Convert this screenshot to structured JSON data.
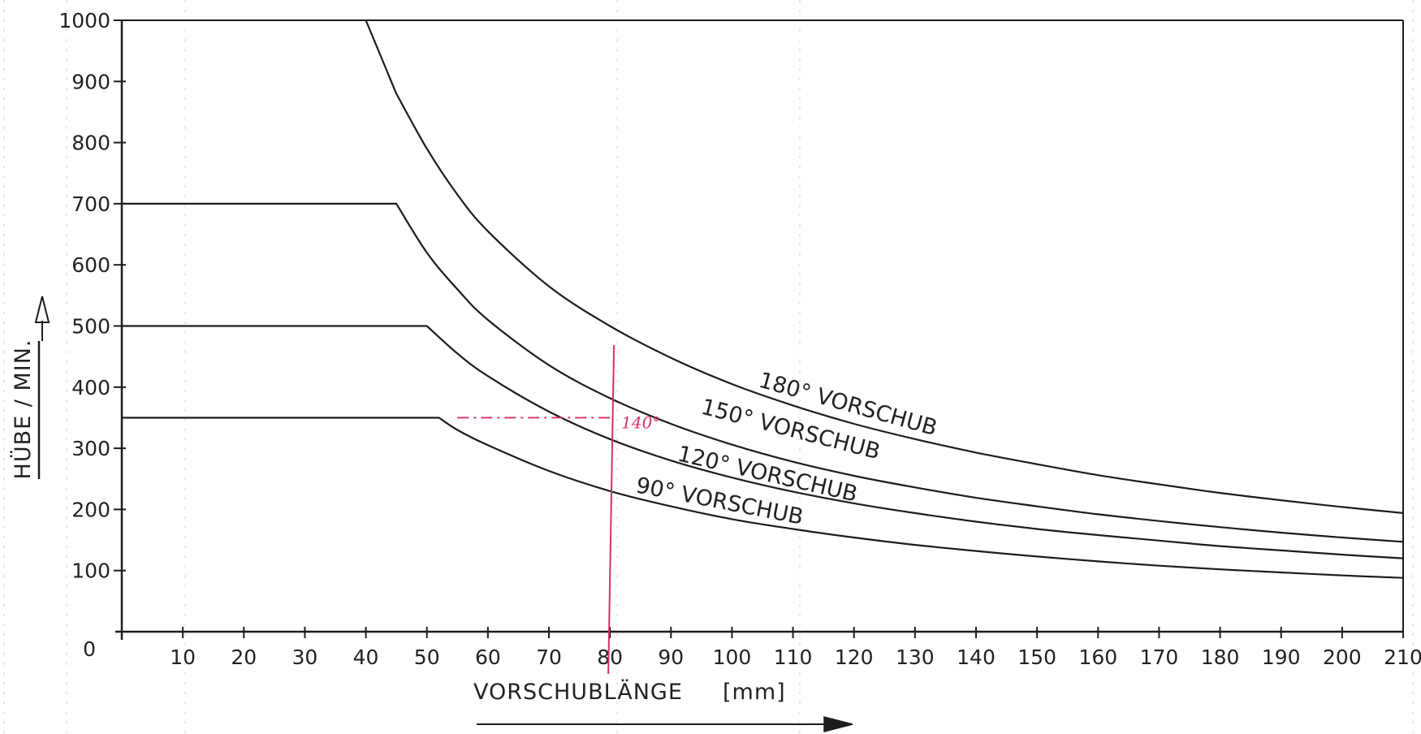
{
  "chart_data": {
    "type": "line",
    "title": "",
    "xlabel": "VORSCHUBLÄNGE",
    "xunit": "[mm]",
    "ylabel": "HÜBE / MIN.",
    "xlim": [
      0,
      210
    ],
    "ylim": [
      0,
      1000
    ],
    "x_ticks": [
      10,
      20,
      30,
      40,
      50,
      60,
      70,
      80,
      90,
      100,
      110,
      120,
      130,
      140,
      150,
      160,
      170,
      180,
      190,
      200,
      210
    ],
    "y_ticks": [
      0,
      100,
      200,
      300,
      400,
      500,
      600,
      700,
      800,
      900,
      1000
    ],
    "grid": false,
    "series": [
      {
        "name": "180° VORSCHUB",
        "x": [
          40,
          45,
          50,
          55,
          60,
          70,
          80,
          90,
          100,
          110,
          120,
          130,
          140,
          150,
          160,
          170,
          180,
          190,
          200,
          210
        ],
        "y": [
          1000,
          880,
          790,
          715,
          655,
          565,
          500,
          448,
          405,
          370,
          340,
          315,
          293,
          274,
          256,
          241,
          227,
          215,
          204,
          194
        ]
      },
      {
        "name": "150° VORSCHUB",
        "x": [
          0,
          45,
          50,
          55,
          60,
          70,
          80,
          90,
          100,
          110,
          120,
          130,
          140,
          150,
          160,
          170,
          180,
          190,
          200,
          210
        ],
        "y": [
          700,
          700,
          620,
          560,
          510,
          436,
          382,
          340,
          306,
          278,
          255,
          236,
          219,
          205,
          192,
          181,
          171,
          162,
          154,
          147
        ]
      },
      {
        "name": "120° VORSCHUB",
        "x": [
          0,
          50,
          55,
          60,
          70,
          80,
          90,
          100,
          110,
          120,
          130,
          140,
          150,
          160,
          170,
          180,
          190,
          200,
          210
        ],
        "y": [
          500,
          500,
          455,
          418,
          360,
          315,
          280,
          252,
          229,
          210,
          194,
          180,
          168,
          158,
          149,
          140,
          133,
          126,
          120
        ]
      },
      {
        "name": "90° VORSCHUB",
        "x": [
          0,
          52,
          55,
          60,
          70,
          80,
          90,
          100,
          110,
          120,
          130,
          140,
          150,
          160,
          170,
          180,
          190,
          200,
          210
        ],
        "y": [
          350,
          350,
          330,
          305,
          263,
          230,
          205,
          184,
          168,
          154,
          142,
          132,
          123,
          115,
          108,
          102,
          97,
          92,
          88
        ]
      }
    ],
    "annotations": [
      {
        "text": "140°",
        "x": 80,
        "y": 350,
        "color": "#d4306a"
      }
    ]
  },
  "colors": {
    "ink": "#1c1c1c",
    "annotation": "#d4306a"
  },
  "icons": [
    "arrow-up-icon",
    "arrow-right-icon"
  ]
}
